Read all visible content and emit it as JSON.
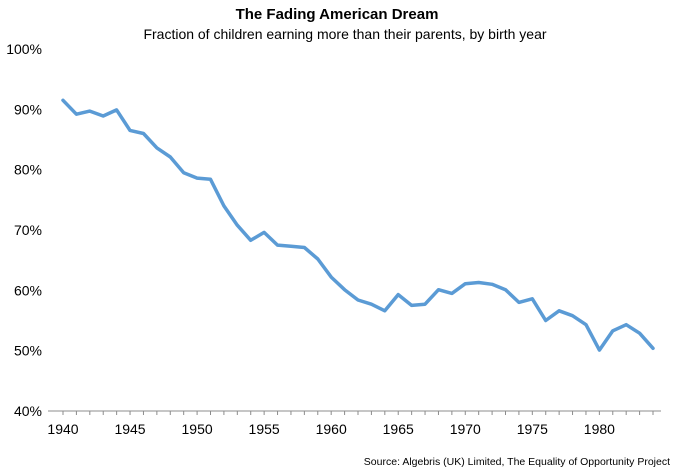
{
  "chart_data": {
    "type": "line",
    "title": "The Fading American Dream",
    "subtitle": "Fraction of children earning more than their  parents, by birth year",
    "xlabel": "",
    "ylabel": "",
    "xlim": [
      1940,
      1984
    ],
    "ylim": [
      40,
      100
    ],
    "y_ticks": [
      40,
      50,
      60,
      70,
      80,
      90,
      100
    ],
    "y_tick_labels": [
      "40%",
      "50%",
      "60%",
      "70%",
      "80%",
      "90%",
      "100%"
    ],
    "x_ticks": [
      1940,
      1945,
      1950,
      1955,
      1960,
      1965,
      1970,
      1975,
      1980
    ],
    "x_tick_labels": [
      "1940",
      "1945",
      "1950",
      "1955",
      "1960",
      "1965",
      "1970",
      "1975",
      "1980"
    ],
    "grid": false,
    "series": [
      {
        "color": "#5b9bd5",
        "x": [
          1940,
          1941,
          1942,
          1943,
          1944,
          1945,
          1946,
          1947,
          1948,
          1949,
          1950,
          1951,
          1952,
          1953,
          1954,
          1955,
          1956,
          1957,
          1958,
          1959,
          1960,
          1961,
          1962,
          1963,
          1964,
          1965,
          1966,
          1967,
          1968,
          1969,
          1970,
          1971,
          1972,
          1973,
          1974,
          1975,
          1976,
          1977,
          1978,
          1979,
          1980,
          1981,
          1982,
          1983,
          1984
        ],
        "y": [
          91.5,
          89.2,
          89.7,
          88.9,
          89.9,
          86.5,
          86.0,
          83.6,
          82.1,
          79.5,
          78.6,
          78.4,
          74.0,
          70.8,
          68.3,
          69.6,
          67.5,
          67.3,
          67.1,
          65.2,
          62.2,
          60.1,
          58.4,
          57.7,
          56.6,
          59.3,
          57.5,
          57.7,
          60.1,
          59.5,
          61.1,
          61.3,
          61.0,
          60.1,
          58.0,
          58.6,
          55.0,
          56.6,
          55.8,
          54.3,
          50.1,
          53.3,
          54.3,
          52.9,
          50.4
        ]
      }
    ],
    "source": "Source: Algebris (UK) Limited, The Equality of Opportunity Project"
  }
}
